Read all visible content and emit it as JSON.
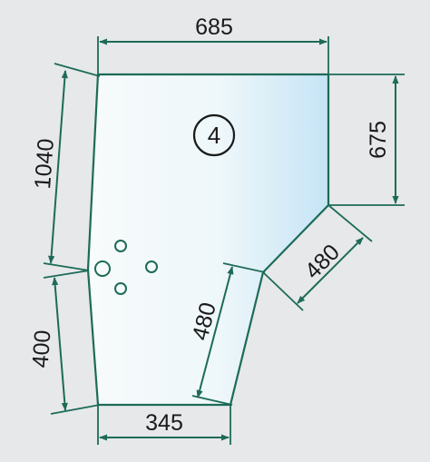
{
  "part": {
    "number": "4"
  },
  "dimensions": {
    "top_width": "685",
    "left_upper_height": "1040",
    "right_upper_height": "675",
    "right_slant": "480",
    "inner_slant": "480",
    "left_lower_height": "400",
    "bottom_width": "345"
  },
  "colors": {
    "dimension_lines": "#1d6b57",
    "glass_light": "#f6fbfb",
    "glass_tint": "#c9e6f7",
    "background": "#e6e8ea"
  },
  "mounting_holes": 4
}
